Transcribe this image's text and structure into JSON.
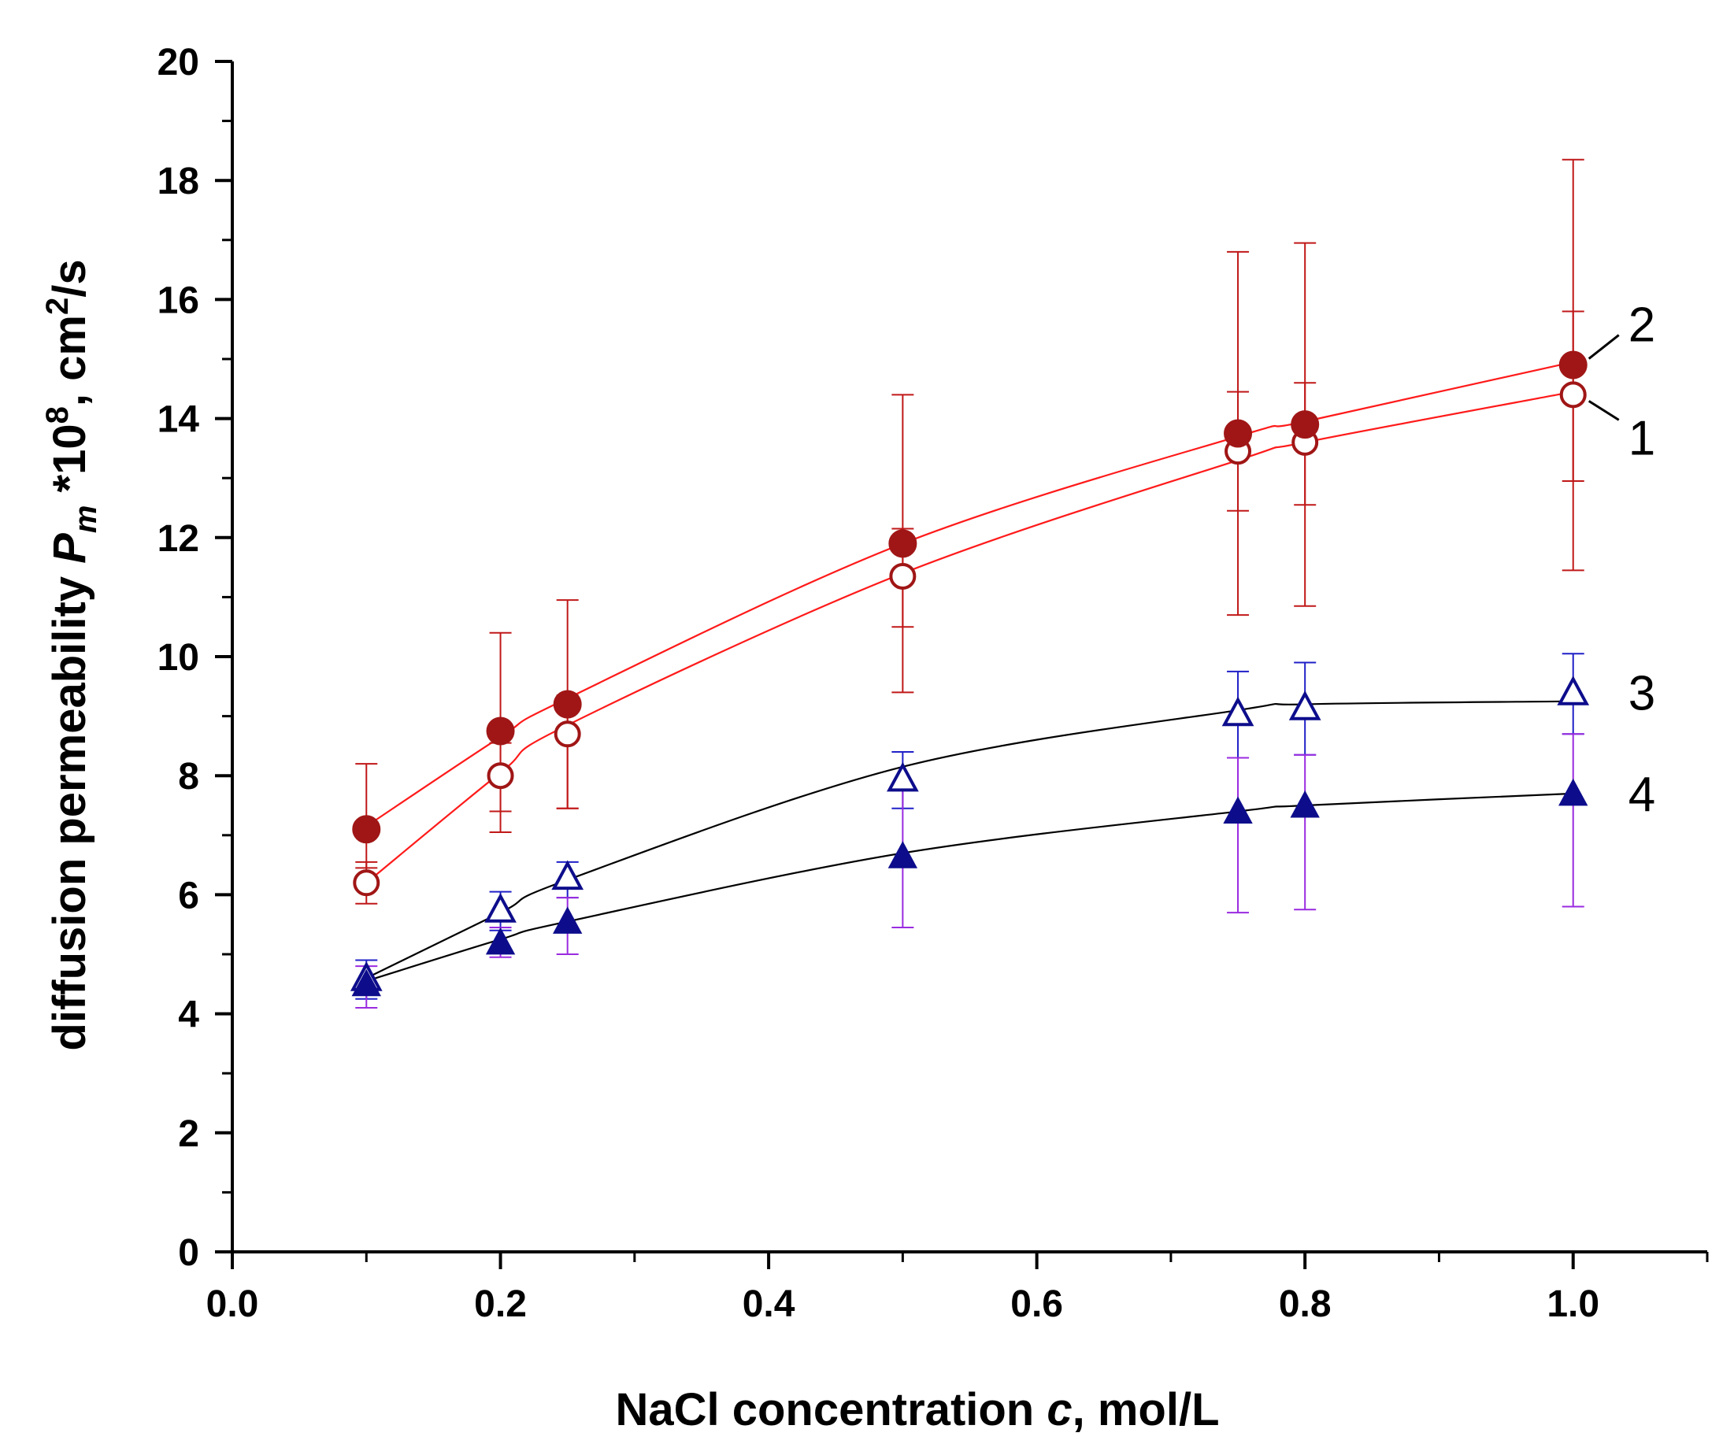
{
  "chart_data": {
    "type": "scatter",
    "xlabel": {
      "prefix": "NaCl concentration ",
      "var": "c",
      "suffix": ", mol/L"
    },
    "ylabel": {
      "prefix": "diffusion permeability ",
      "var": "P",
      "sub": "m",
      "mid1": " *10",
      "sup1": "8",
      "mid2": ", cm",
      "sup2": "2",
      "suffix": "/s"
    },
    "xlim": [
      0.0,
      1.1
    ],
    "ylim": [
      0,
      20
    ],
    "xticks": [
      "0.0",
      "0.2",
      "0.4",
      "0.6",
      "0.8",
      "1.0"
    ],
    "yticks": [
      "0",
      "2",
      "4",
      "6",
      "8",
      "10",
      "12",
      "14",
      "16",
      "18",
      "20"
    ],
    "x": [
      0.1,
      0.2,
      0.25,
      0.5,
      0.75,
      0.8,
      1.0
    ],
    "series": [
      {
        "name": "1",
        "marker": "open-circle",
        "marker_color": "#a01616",
        "errbar_color": "#c01818",
        "fit_color": "#ff1a1a",
        "values": [
          6.2,
          8.0,
          8.7,
          11.35,
          13.45,
          13.6,
          14.4
        ],
        "err_low": [
          5.85,
          7.05,
          7.45,
          9.4,
          10.7,
          10.85,
          11.45
        ],
        "err_high": [
          6.55,
          8.55,
          9.35,
          12.15,
          14.45,
          14.6,
          15.8
        ],
        "fit": [
          6.2,
          8.05,
          8.85,
          11.4,
          13.3,
          13.6,
          14.45
        ]
      },
      {
        "name": "2",
        "marker": "filled-circle",
        "marker_color": "#a01616",
        "errbar_color": "#c01818",
        "fit_color": "#ff1a1a",
        "values": [
          7.1,
          8.75,
          9.2,
          11.9,
          13.75,
          13.9,
          14.9
        ],
        "err_low": [
          6.45,
          7.4,
          7.45,
          10.5,
          12.45,
          12.55,
          12.95
        ],
        "err_high": [
          8.2,
          10.4,
          10.95,
          14.4,
          16.8,
          16.95,
          18.35
        ],
        "fit": [
          7.15,
          8.65,
          9.3,
          11.9,
          13.7,
          13.95,
          14.95
        ]
      },
      {
        "name": "3",
        "marker": "open-triangle",
        "marker_color": "#0d0d8c",
        "errbar_color": "#2020c8",
        "fit_color": "#000000",
        "values": [
          4.6,
          5.75,
          6.3,
          7.95,
          9.05,
          9.15,
          9.4
        ],
        "err_low": [
          4.25,
          5.4,
          5.95,
          7.45,
          8.3,
          8.35,
          8.7
        ],
        "err_high": [
          4.9,
          6.05,
          6.55,
          8.4,
          9.75,
          9.9,
          10.05
        ],
        "fit": [
          4.6,
          5.7,
          6.25,
          8.15,
          9.1,
          9.2,
          9.25
        ]
      },
      {
        "name": "4",
        "marker": "filled-triangle",
        "marker_color": "#0d0d8c",
        "errbar_color": "#9a2be0",
        "fit_color": "#000000",
        "values": [
          4.5,
          5.2,
          5.55,
          6.65,
          7.4,
          7.5,
          7.7
        ],
        "err_low": [
          4.1,
          4.95,
          5.0,
          5.45,
          5.7,
          5.75,
          5.8
        ],
        "err_high": [
          4.8,
          5.45,
          5.95,
          7.75,
          8.3,
          8.35,
          8.7
        ],
        "fit": [
          4.55,
          5.25,
          5.55,
          6.7,
          7.4,
          7.5,
          7.7
        ]
      }
    ]
  }
}
